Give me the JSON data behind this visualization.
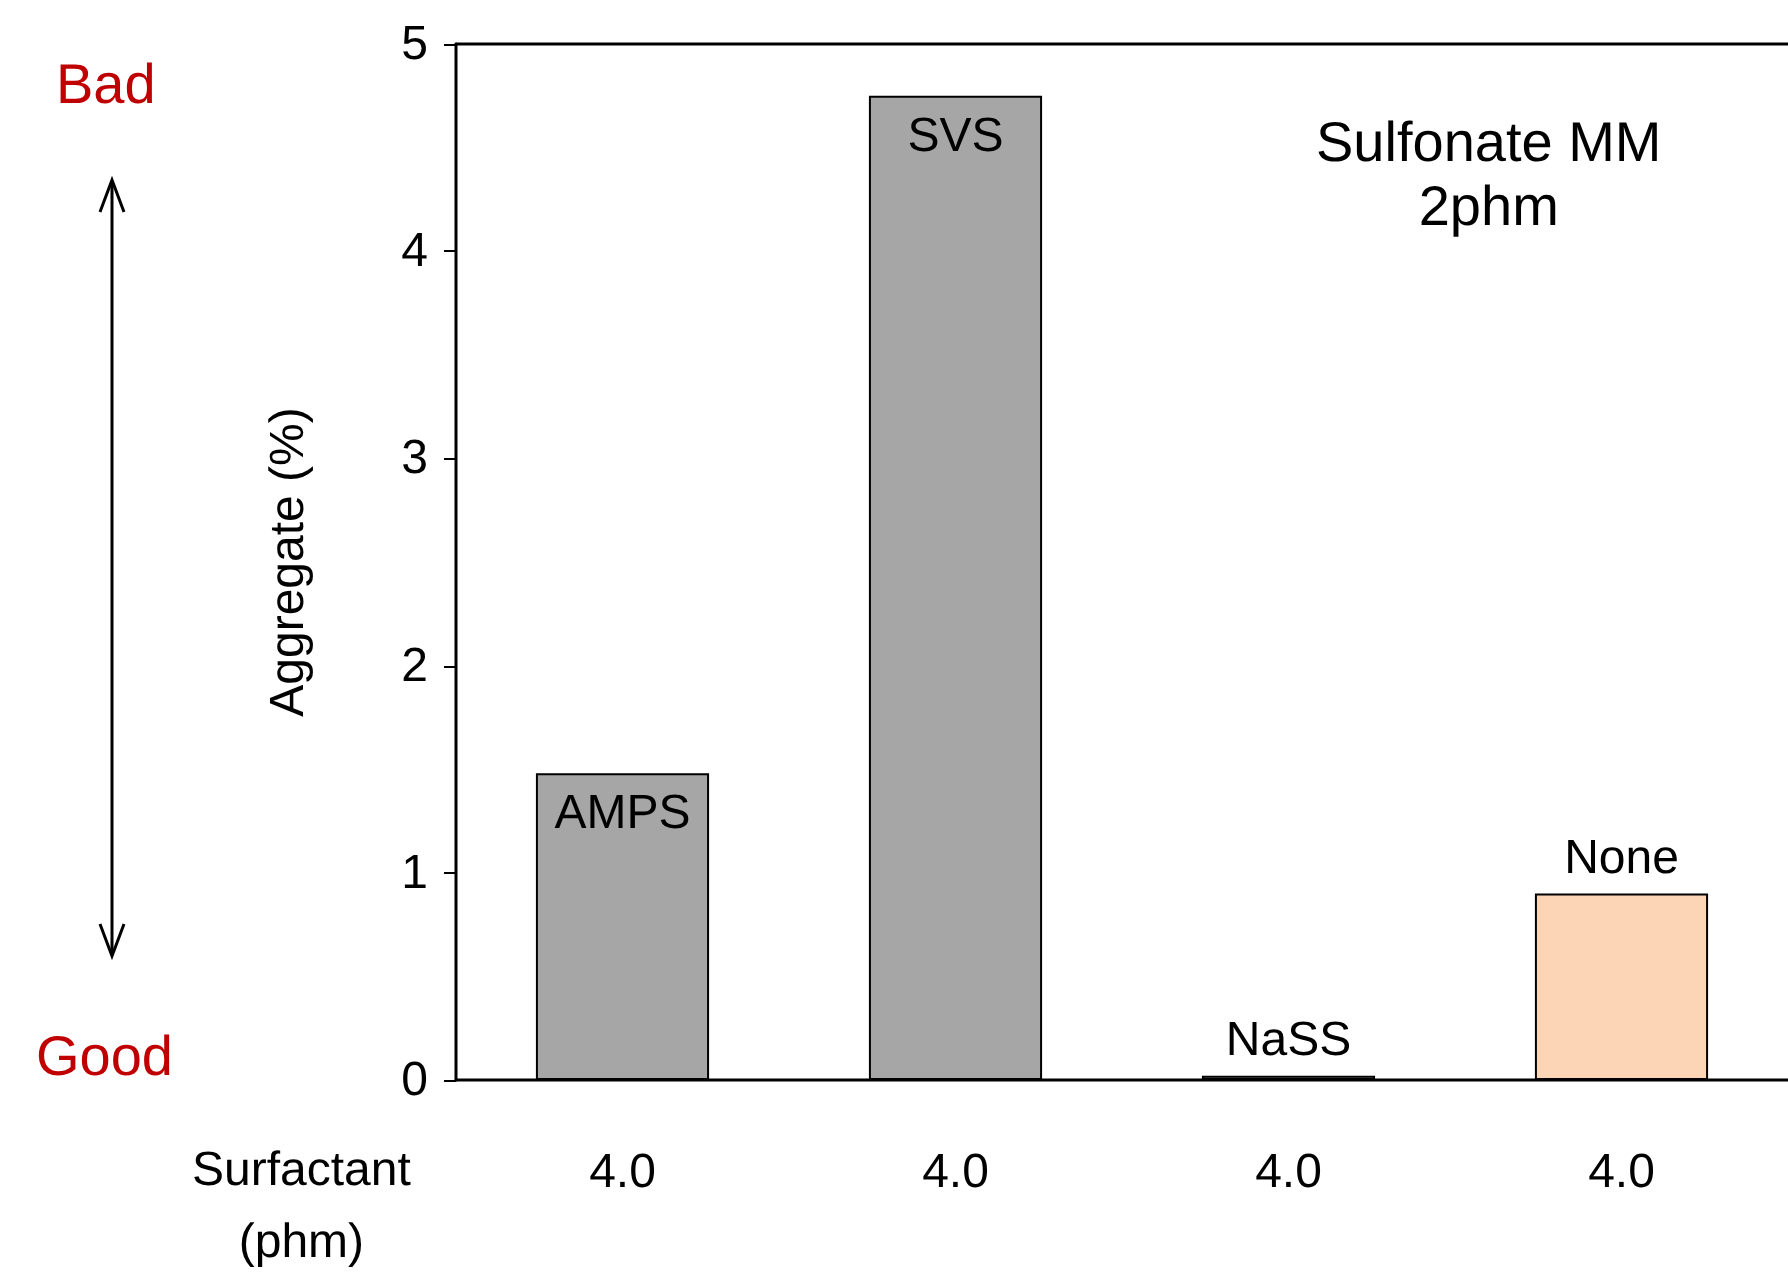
{
  "chart_data": {
    "type": "bar",
    "xlabel": "Surfactant\n(phm)",
    "ylabel": "Aggregate (%)",
    "categories": [
      "4.0",
      "4.0",
      "4.0",
      "4.0"
    ],
    "values": [
      1.48,
      4.75,
      0.02,
      0.9
    ],
    "colors": [
      "#a6a6a6",
      "#a6a6a6",
      "#a6a6a6",
      "#fbd5b5"
    ],
    "value_labels": [
      "AMPS",
      "SVS",
      "NaSS",
      "None"
    ],
    "ylim": [
      0,
      5
    ],
    "yticks": [
      0,
      1,
      2,
      3,
      4,
      5
    ],
    "grid": false,
    "annotations": [
      "Bad",
      "Good",
      "Sulfonate MM\n2phm"
    ]
  }
}
